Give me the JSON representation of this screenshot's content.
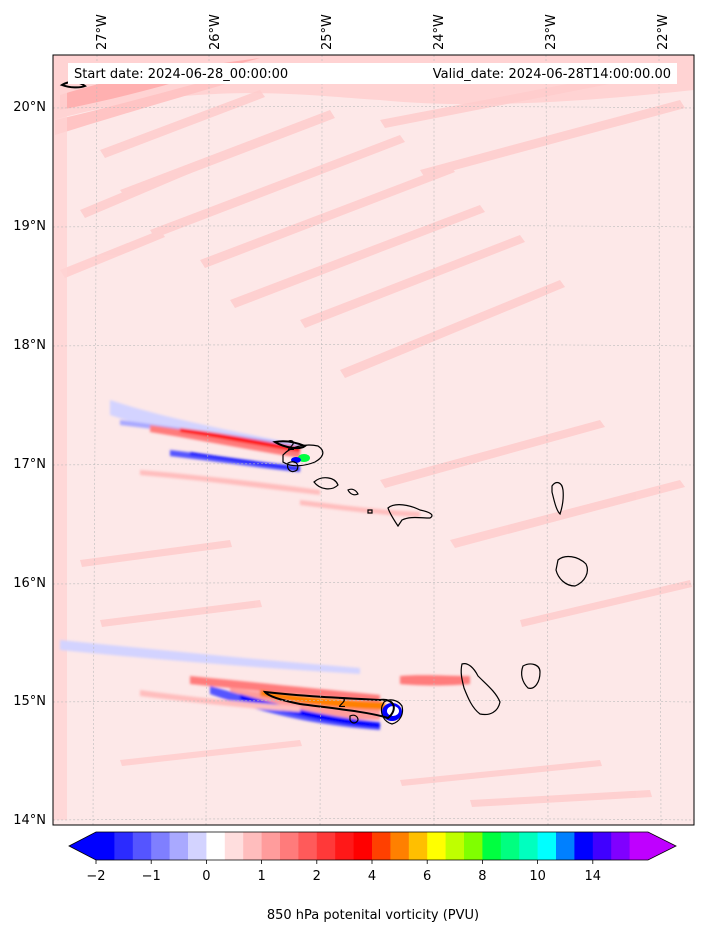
{
  "map": {
    "start_date_label": "Start date: 2024-06-28_00:00:00",
    "valid_date_label": "Valid_date: 2024-06-28T14:00:00.00",
    "lon_labels": [
      "27°W",
      "26°W",
      "25°W",
      "24°W",
      "23°W",
      "22°W"
    ],
    "lat_labels": [
      "20°N",
      "19°N",
      "18°N",
      "17°N",
      "16°N",
      "15°N",
      "14°N"
    ],
    "contour_labels": [
      "2",
      "2"
    ],
    "background_color": "#fde8e8"
  },
  "colorbar": {
    "label": "850 hPa potenital vorticity (PVU)",
    "tick_labels": [
      "−2",
      "−1",
      "0",
      "1",
      "2",
      "4",
      "6",
      "8",
      "10",
      "14"
    ],
    "colors": [
      "#0000ff",
      "#2b2bff",
      "#5555ff",
      "#7f7fff",
      "#a9a9ff",
      "#d3d3ff",
      "#ffffff",
      "#ffdede",
      "#ffbdbd",
      "#ff9c9c",
      "#ff7b7b",
      "#ff5a5a",
      "#ff3939",
      "#ff1818",
      "#ff0000",
      "#ff4000",
      "#ff8000",
      "#ffbf00",
      "#ffff00",
      "#bfff00",
      "#80ff00",
      "#00ff40",
      "#00ff80",
      "#00ffbf",
      "#00ffff",
      "#0080ff",
      "#0000ff",
      "#4000ff",
      "#8000ff",
      "#bf00ff"
    ],
    "under_color": "#0000ff",
    "over_color": "#bf00ff"
  }
}
